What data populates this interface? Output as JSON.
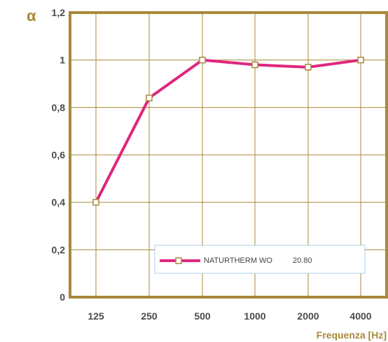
{
  "chart_data": {
    "type": "line",
    "x": [
      "125",
      "250",
      "500",
      "1000",
      "2000",
      "4000"
    ],
    "y_ticks": [
      "0",
      "0,2",
      "0,4",
      "0,6",
      "0,8",
      "1",
      "1,2"
    ],
    "ylim": [
      0,
      1.2
    ],
    "ylabel": "α",
    "xlabel": "Frequenza [Hz]",
    "grid": true,
    "legend_position": "bottom-right",
    "series": [
      {
        "name": "NATURTHERM WO",
        "legend_value": "20.80",
        "values": [
          0.4,
          0.84,
          1.0,
          0.98,
          0.97,
          1.0
        ]
      }
    ],
    "colors": {
      "axis": "#a8893a",
      "grid": "#a8893a",
      "series": "#e0267e",
      "marker_edge": "#a8893a",
      "legend_border": "#a9cfe8"
    }
  }
}
